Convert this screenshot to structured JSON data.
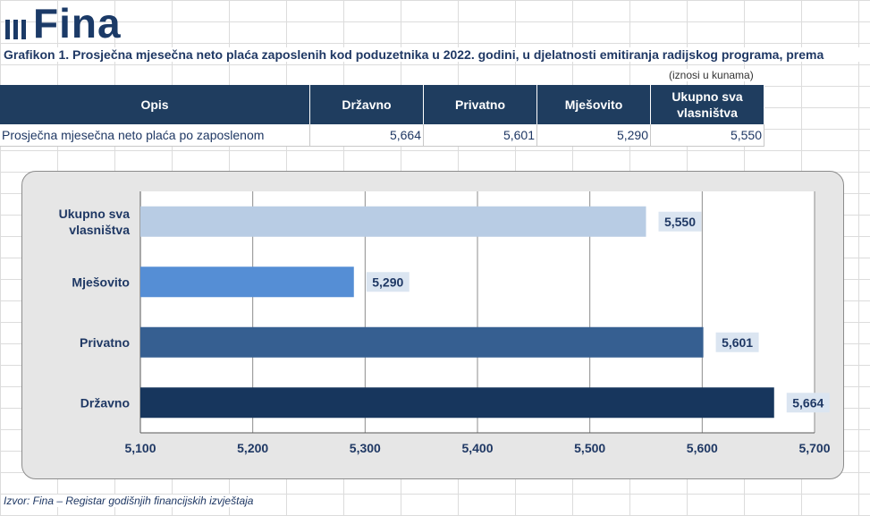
{
  "logo": {
    "text": "Fina"
  },
  "title": "Grafikon 1.  Prosječna mjesečna neto plaća zaposlenih kod poduzetnika u 2022. godini, u djelatnosti emitiranja radijskog programa, prema",
  "units_note": "(iznosi u kunama)",
  "table": {
    "headers": [
      "Opis",
      "Državno",
      "Privatno",
      "Mješovito",
      "Ukupno sva vlasništva"
    ],
    "row": {
      "label": "Prosječna mjesečna neto plaća po zaposlenom",
      "values": [
        "5,664",
        "5,601",
        "5,290",
        "5,550"
      ]
    }
  },
  "chart_data": {
    "type": "bar",
    "orientation": "horizontal",
    "categories": [
      "Ukupno sva vlasništva",
      "Mješovito",
      "Privatno",
      "Državno"
    ],
    "values": [
      5550,
      5290,
      5601,
      5664
    ],
    "value_labels": [
      "5,550",
      "5,290",
      "5,601",
      "5,664"
    ],
    "colors": [
      "#b8cce4",
      "#558ed5",
      "#365f91",
      "#17365d"
    ],
    "xlim": [
      5100,
      5700
    ],
    "xticks": [
      5100,
      5200,
      5300,
      5400,
      5500,
      5600,
      5700
    ],
    "xtick_labels": [
      "5,100",
      "5,200",
      "5,300",
      "5,400",
      "5,500",
      "5,600",
      "5,700"
    ],
    "grid": true,
    "label_box_color": "#dbe5f1"
  },
  "source": "Izvor: Fina – Registar godišnjih financijskih izvještaja"
}
